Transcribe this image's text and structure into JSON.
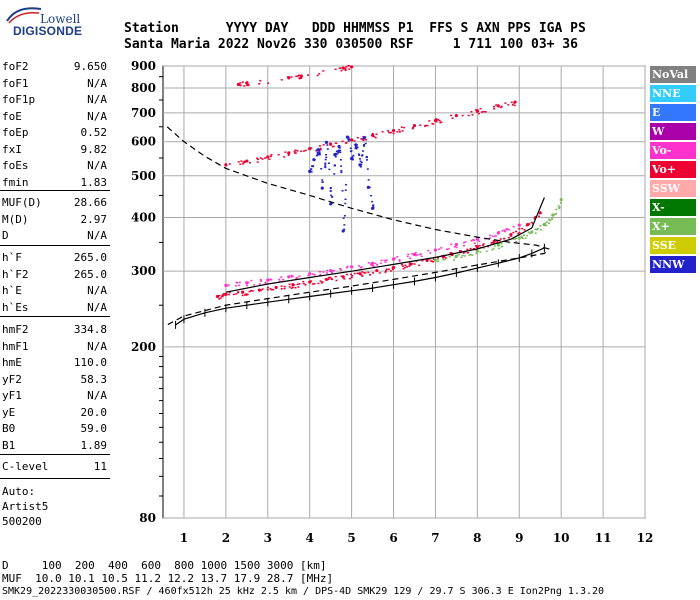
{
  "logo": {
    "line1": "Lowell",
    "line2": "DIGISONDE"
  },
  "header": {
    "line1": "Station      YYYY DAY   DDD HHMMSS P1  FFS S AXN PPS IGA PS",
    "line2": "Santa Maria 2022 Nov26 330 030500 RSF     1 711 100 03+ 36"
  },
  "params": {
    "g1": [
      {
        "k": "foF2",
        "v": "9.650"
      },
      {
        "k": "foF1",
        "v": "N/A"
      },
      {
        "k": "foF1p",
        "v": "N/A"
      },
      {
        "k": "foE",
        "v": "N/A"
      },
      {
        "k": "foEp",
        "v": "0.52"
      },
      {
        "k": "fxI",
        "v": "9.82"
      },
      {
        "k": "foEs",
        "v": "N/A"
      },
      {
        "k": "fmin",
        "v": "1.83"
      }
    ],
    "g2": [
      {
        "k": "MUF(D)",
        "v": "28.66"
      },
      {
        "k": "M(D)",
        "v": "2.97"
      },
      {
        "k": "D",
        "v": "N/A"
      }
    ],
    "g3": [
      {
        "k": "h`F",
        "v": "265.0"
      },
      {
        "k": "h`F2",
        "v": "265.0"
      },
      {
        "k": "h`E",
        "v": "N/A"
      },
      {
        "k": "h`Es",
        "v": "N/A"
      }
    ],
    "g4": [
      {
        "k": "hmF2",
        "v": "334.8"
      },
      {
        "k": "hmF1",
        "v": "N/A"
      },
      {
        "k": "hmE",
        "v": "110.0"
      },
      {
        "k": "yF2",
        "v": "58.3"
      },
      {
        "k": "yF1",
        "v": "N/A"
      },
      {
        "k": "yE",
        "v": "20.0"
      },
      {
        "k": "B0",
        "v": "59.0"
      },
      {
        "k": "B1",
        "v": "1.89"
      }
    ],
    "g5": [
      {
        "k": "C-level",
        "v": "11"
      }
    ],
    "auto_lines": [
      "Auto:",
      "Artist5",
      "500200"
    ]
  },
  "legend": [
    {
      "label": "NoVal",
      "bg": "#808080",
      "fg": "#ffffff"
    },
    {
      "label": "NNE",
      "bg": "#33ccff",
      "fg": "#ffffff"
    },
    {
      "label": "E",
      "bg": "#3377ff",
      "fg": "#ffffff"
    },
    {
      "label": "W",
      "bg": "#aa00aa",
      "fg": "#ffffff"
    },
    {
      "label": "Vo-",
      "bg": "#ff33cc",
      "fg": "#ffffff"
    },
    {
      "label": "Vo+",
      "bg": "#ee0033",
      "fg": "#ffffff"
    },
    {
      "label": "SSW",
      "bg": "#ffaaaa",
      "fg": "#ffffff"
    },
    {
      "label": "X-",
      "bg": "#007700",
      "fg": "#ffffff"
    },
    {
      "label": "X+",
      "bg": "#77bb55",
      "fg": "#ffffff"
    },
    {
      "label": "SSE",
      "bg": "#cccc00",
      "fg": "#ffffff"
    },
    {
      "label": "NNW",
      "bg": "#2222cc",
      "fg": "#ffffff"
    }
  ],
  "footer": {
    "row1": "D     100  200  400  600  800 1000 1500 3000 [km]",
    "row2": "MUF  10.0 10.1 10.5 11.2 12.2 13.7 17.9 28.7 [MHz]",
    "row3": "SMK29_2022330030500.RSF / 460fx512h 25 kHz 2.5 km / DPS-4D SMK29 129 / 29.7 S 306.3 E Ion2Png 1.3.20"
  },
  "chart_data": {
    "type": "scatter",
    "xlim": [
      0.5,
      12
    ],
    "ylim": [
      80,
      900
    ],
    "yscale": "log",
    "grid": true,
    "x_ticks": [
      1,
      2,
      3,
      4,
      5,
      6,
      7,
      8,
      9,
      10,
      11,
      12
    ],
    "y_ticks": [
      80,
      200,
      300,
      400,
      500,
      600,
      700,
      800,
      900
    ],
    "series": [
      {
        "color": "#ee0033",
        "x": [
          1.8,
          2.0,
          2.4,
          2.8,
          3.2,
          3.6,
          4.0,
          4.4,
          4.8,
          5.2,
          5.6,
          6.0,
          6.4,
          6.8,
          7.2,
          7.6,
          8.0,
          8.4,
          8.8,
          9.2,
          9.5
        ],
        "y": [
          262,
          265,
          268,
          271,
          275,
          279,
          283,
          287,
          291,
          296,
          301,
          306,
          312,
          318,
          325,
          333,
          342,
          352,
          365,
          385,
          410
        ]
      },
      {
        "color": "#ff33cc",
        "x": [
          2.0,
          2.5,
          3.0,
          3.5,
          4.0,
          4.5,
          5.0,
          5.5,
          6.0,
          6.5,
          7.0,
          7.5,
          8.0,
          8.5,
          9.0
        ],
        "y": [
          278,
          282,
          286,
          291,
          296,
          301,
          307,
          313,
          320,
          328,
          336,
          346,
          356,
          368,
          384
        ]
      },
      {
        "color": "#77bb55",
        "x": [
          7.0,
          7.5,
          8.0,
          8.5,
          9.0,
          9.3,
          9.6,
          9.8,
          10.0
        ],
        "y": [
          318,
          325,
          334,
          345,
          358,
          370,
          385,
          405,
          440
        ]
      },
      {
        "color": "#ee0033",
        "x": [
          2.0,
          2.5,
          3.0,
          3.5,
          4.0,
          4.5,
          5.0,
          5.5,
          6.0,
          6.5,
          7.0,
          7.5,
          8.0,
          8.5,
          8.9
        ],
        "y": [
          530,
          541,
          553,
          565,
          578,
          592,
          606,
          621,
          637,
          654,
          672,
          690,
          708,
          727,
          742
        ]
      },
      {
        "color": "#ee0033",
        "x": [
          2.3,
          2.5,
          3.5,
          3.8,
          4.8,
          5.0
        ],
        "y": [
          815,
          822,
          845,
          853,
          890,
          896
        ]
      },
      {
        "color": "#2222cc",
        "x": [
          4.0,
          4.1,
          4.2,
          4.3,
          4.4,
          4.5,
          4.6,
          4.7,
          4.8,
          4.9,
          5.0,
          5.1,
          5.2,
          5.3,
          5.4,
          5.5
        ],
        "y": [
          512,
          545,
          575,
          468,
          598,
          430,
          560,
          585,
          372,
          615,
          548,
          590,
          530,
          612,
          470,
          420
        ]
      }
    ],
    "lines": [
      {
        "name": "",
        "style": "dashed",
        "x": [
          0.6,
          1.0,
          1.5,
          2.0,
          3.0,
          4.0,
          5.0,
          6.0,
          7.0,
          8.0,
          8.8,
          9.4,
          9.7,
          9.6,
          9.0,
          8.0,
          7.0,
          6.0,
          5.0,
          4.0,
          3.0,
          2.0,
          1.0,
          0.6
        ],
        "y": [
          650,
          600,
          555,
          520,
          480,
          450,
          420,
          395,
          375,
          360,
          350,
          345,
          338,
          330,
          322,
          310,
          298,
          287,
          277,
          268,
          259,
          250,
          236,
          225
        ]
      },
      {
        "name": "",
        "style": "hatched",
        "x": [
          0.8,
          1.0,
          1.5,
          2.0,
          2.5,
          3.0,
          3.5,
          4.0,
          4.5,
          5.0,
          5.5,
          6.0,
          6.5,
          7.0,
          7.5,
          8.0,
          8.5,
          9.0,
          9.3,
          9.6
        ],
        "y": [
          225,
          232,
          240,
          246,
          250,
          254,
          258,
          262,
          266,
          270,
          274,
          279,
          284,
          290,
          297,
          305,
          313,
          322,
          330,
          340
        ]
      },
      {
        "name": "",
        "style": "solid",
        "x": [
          2.0,
          3.0,
          4.0,
          5.0,
          6.0,
          7.0,
          8.0,
          8.8,
          9.3,
          9.6
        ],
        "y": [
          268,
          280,
          290,
          300,
          311,
          323,
          338,
          356,
          378,
          445
        ]
      }
    ]
  }
}
